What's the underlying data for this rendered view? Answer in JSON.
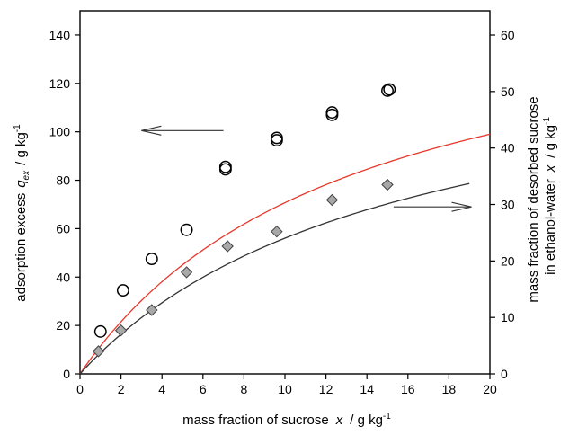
{
  "chart_data": {
    "type": "scatter",
    "title": "",
    "x_axis": {
      "range": [
        0,
        20
      ],
      "ticks": [
        0,
        2,
        4,
        6,
        8,
        10,
        12,
        14,
        16,
        18,
        20
      ],
      "label_text": "mass fraction of sucrose",
      "label_var": "x",
      "label_unit": "/ g kg",
      "label_unit_exp": "-1"
    },
    "y_left_axis": {
      "range": [
        0,
        150
      ],
      "ticks": [
        0,
        20,
        40,
        60,
        80,
        100,
        120,
        140
      ],
      "label_text": "adsorption excess",
      "label_var": "q",
      "label_var_sub": "ex",
      "label_unit": "/ g kg",
      "label_unit_exp": "-1"
    },
    "y_right_axis": {
      "range": [
        0,
        64.3
      ],
      "ticks": [
        0,
        10,
        20,
        30,
        40,
        50,
        60
      ],
      "label_line1": "mass fraction of desorbed sucrose",
      "label_line2_text": "in ethanol-water",
      "label_line2_var": "x",
      "label_line2_unit": "/ g kg",
      "label_line2_exp": "-1"
    },
    "grid": false,
    "series": [
      {
        "marker": "open-circle",
        "axis": "left",
        "color": "#000000",
        "points": [
          [
            1.0,
            17.5
          ],
          [
            2.1,
            34.5
          ],
          [
            3.5,
            47.5
          ],
          [
            5.2,
            59.5
          ],
          [
            7.1,
            84.5
          ],
          [
            7.1,
            85.5
          ],
          [
            9.6,
            96.5
          ],
          [
            9.6,
            97.5
          ],
          [
            12.3,
            107.0
          ],
          [
            12.3,
            108.0
          ],
          [
            15.0,
            117.0
          ],
          [
            15.1,
            117.5
          ]
        ]
      },
      {
        "marker": "grey-diamond",
        "axis": "right",
        "color": "#a8a8a8",
        "points": [
          [
            0.9,
            4.0
          ],
          [
            2.0,
            7.7
          ],
          [
            3.5,
            11.3
          ],
          [
            5.2,
            18.0
          ],
          [
            7.2,
            22.6
          ],
          [
            9.6,
            25.2
          ],
          [
            12.3,
            30.8
          ],
          [
            15.0,
            33.5
          ]
        ]
      }
    ],
    "fit_curves": [
      {
        "axis": "left",
        "color": "#e8372a",
        "x_max": 20,
        "qmax": 165,
        "k": 0.075
      },
      {
        "axis": "right",
        "color": "#333333",
        "x_max": 19,
        "qmax": 61,
        "k": 0.065
      }
    ],
    "arrows": [
      {
        "points_to": "left-axis",
        "y_left": 100.5,
        "x_from": 7.0,
        "x_to": 3.0
      },
      {
        "points_to": "right-axis",
        "y_left": 69,
        "x_from": 15.3,
        "x_to": 19.1
      }
    ]
  }
}
